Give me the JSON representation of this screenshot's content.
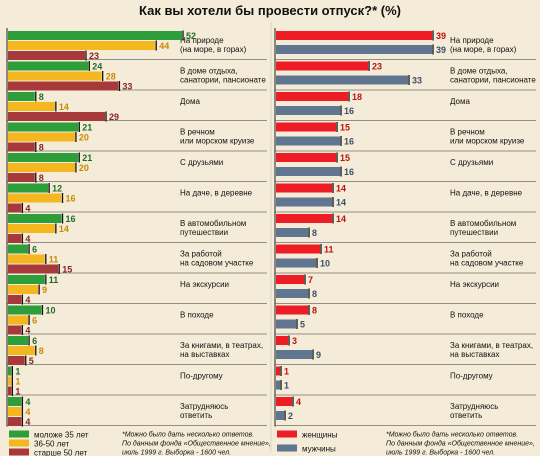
{
  "title": "Как вы хотели бы провести отпуск?* (%)",
  "chart_data": [
    {
      "type": "bar",
      "orientation": "horizontal",
      "xlim": [
        0,
        52
      ],
      "categories": [
        [
          "На природе",
          "(на море, в горах)"
        ],
        [
          "В доме отдыха,",
          "санатории, пансионате"
        ],
        [
          "Дома"
        ],
        [
          "В речном",
          "или морском круизе"
        ],
        [
          "С друзьями"
        ],
        [
          "На даче, в деревне"
        ],
        [
          "В автомобильном",
          "путешествии"
        ],
        [
          "За работой",
          "на садовом участке"
        ],
        [
          "На экскурсии"
        ],
        [
          "В походе"
        ],
        [
          "За книгами, в театрах,",
          "на выставках"
        ],
        [
          "По-другому"
        ],
        [
          "Затрудняюсь",
          "ответить"
        ]
      ],
      "series": [
        {
          "name": "моложе 35 лет",
          "color": "#2e9e3a",
          "values": [
            52,
            24,
            8,
            21,
            21,
            12,
            16,
            6,
            11,
            10,
            6,
            1,
            4
          ]
        },
        {
          "name": "36-50 лет",
          "color": "#f5b71f",
          "values": [
            44,
            28,
            14,
            20,
            20,
            16,
            14,
            11,
            9,
            6,
            8,
            1,
            4
          ]
        },
        {
          "name": "старше 50 лет",
          "color": "#a8393a",
          "values": [
            23,
            33,
            29,
            8,
            8,
            4,
            4,
            15,
            4,
            4,
            5,
            1,
            4
          ]
        }
      ],
      "legend": "bottom-left"
    },
    {
      "type": "bar",
      "orientation": "horizontal",
      "xlim": [
        0,
        39
      ],
      "categories": [
        [
          "На природе",
          "(на море, в горах)"
        ],
        [
          "В доме отдыха,",
          "санатории, пансионате"
        ],
        [
          "Дома"
        ],
        [
          "В речном",
          "или морском круизе"
        ],
        [
          "С друзьями"
        ],
        [
          "На даче, в деревне"
        ],
        [
          "В автомобильном",
          "путешествии"
        ],
        [
          "За работой",
          "на садовом участке"
        ],
        [
          "На экскурсии"
        ],
        [
          "В походе"
        ],
        [
          "За книгами, в театрах,",
          "на выставках"
        ],
        [
          "По-другому"
        ],
        [
          "Затрудняюсь",
          "ответить"
        ]
      ],
      "series": [
        {
          "name": "женщины",
          "color": "#ee1c25",
          "values": [
            39,
            23,
            18,
            15,
            15,
            14,
            14,
            11,
            7,
            8,
            3,
            1,
            4
          ]
        },
        {
          "name": "мужчины",
          "color": "#5f7590",
          "values": [
            39,
            33,
            16,
            16,
            16,
            14,
            8,
            10,
            8,
            5,
            9,
            1,
            2
          ]
        }
      ],
      "legend": "bottom-left"
    }
  ],
  "note": [
    "*Можно было дать несколько ответов.",
    "По данным фонда «Общественное мнение»,",
    "июль 1999 г. Выборка - 1600 чел."
  ]
}
